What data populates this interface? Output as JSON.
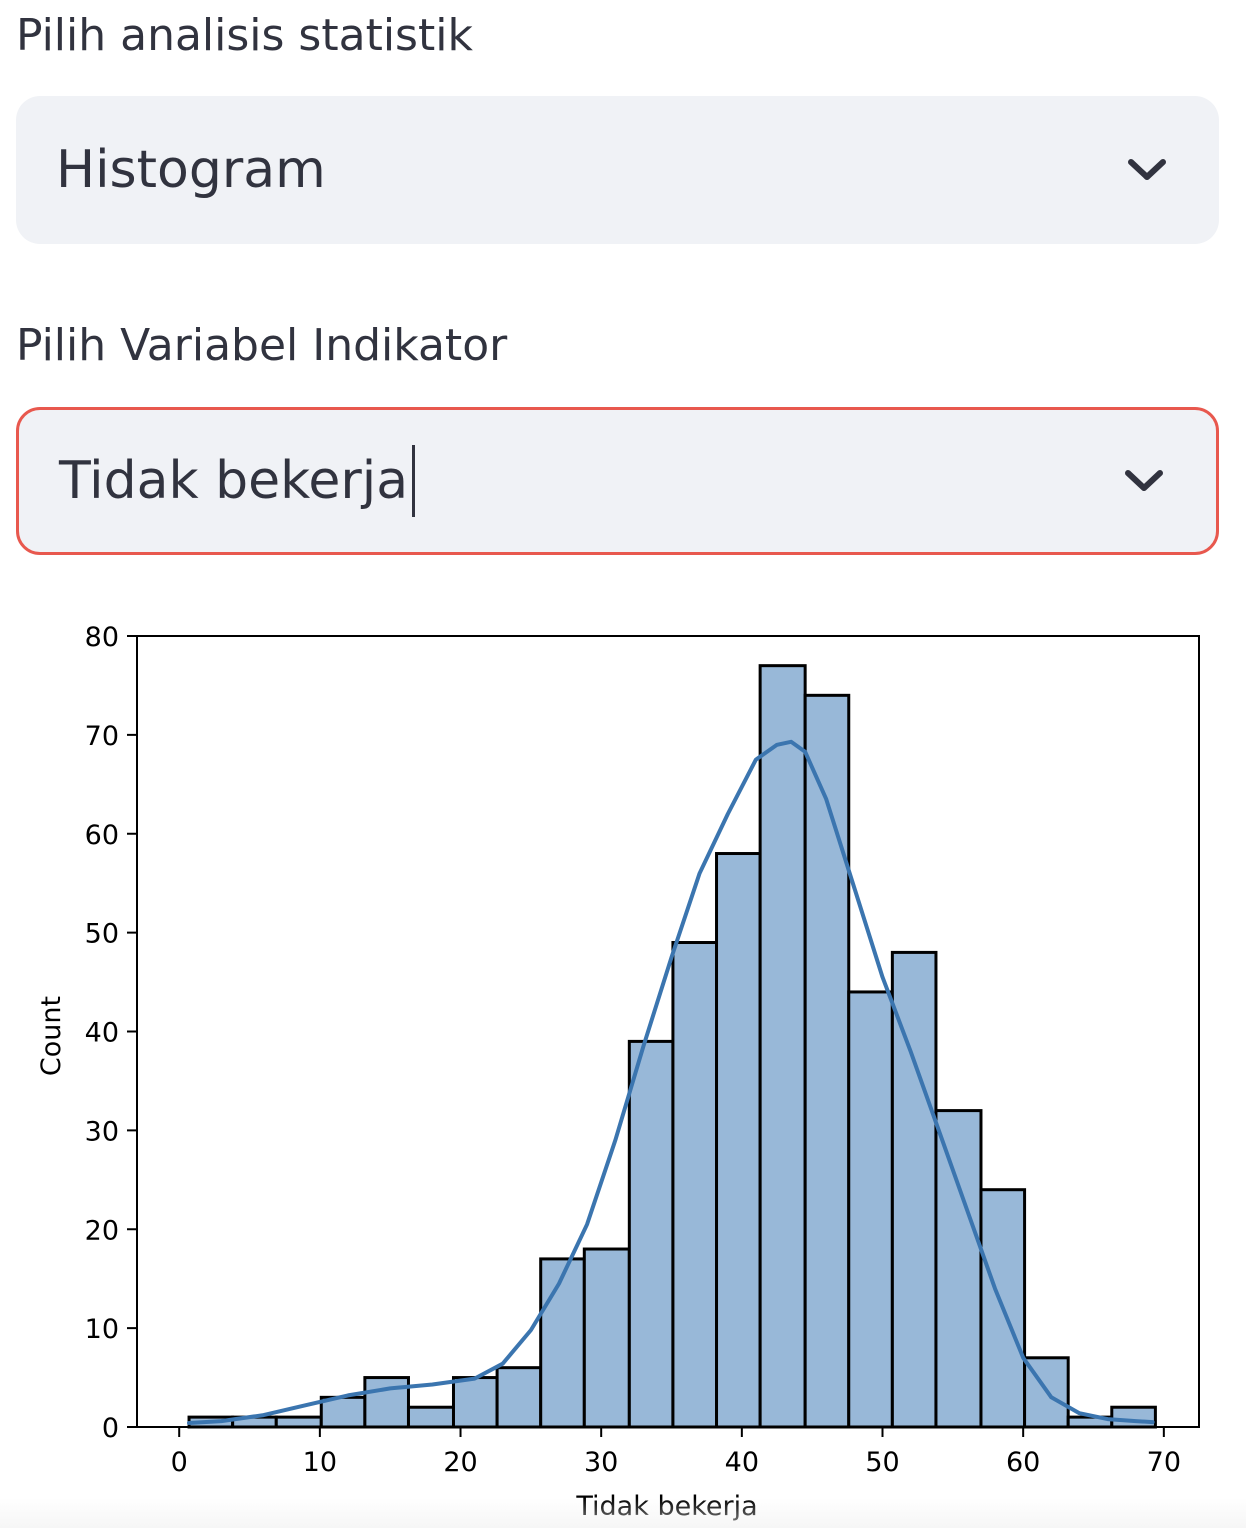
{
  "analysis_select": {
    "label": "Pilih analisis statistik",
    "value": "Histogram",
    "icon": "chevron-down-icon"
  },
  "variable_select": {
    "label": "Pilih Variabel Indikator",
    "value": "Tidak bekerja",
    "icon": "chevron-down-icon",
    "focused": true,
    "focus_border_color": "#e8584e"
  },
  "colors": {
    "select_background": "#f0f2f6",
    "text": "#31333f",
    "bar_fill": "#98b8d8",
    "bar_edge": "#000000",
    "kde_line": "#3b75af"
  },
  "chart_data": {
    "type": "bar",
    "subtype": "histogram-with-kde",
    "xlabel": "Tidak bekerja",
    "ylabel": "Count",
    "xlim": [
      -3,
      72.5
    ],
    "ylim": [
      0,
      80
    ],
    "xticks": [
      0,
      10,
      20,
      30,
      40,
      50,
      60,
      70
    ],
    "yticks": [
      0,
      10,
      20,
      30,
      40,
      50,
      60,
      70,
      80
    ],
    "bin_edges": [
      0.7,
      3.8,
      6.9,
      10.1,
      13.2,
      16.3,
      19.5,
      22.6,
      25.7,
      28.8,
      32.0,
      35.1,
      38.2,
      41.3,
      44.5,
      47.6,
      50.7,
      53.8,
      57.0,
      60.1,
      63.2,
      66.3,
      69.4
    ],
    "values": [
      1,
      1,
      1,
      3,
      5,
      2,
      5,
      6,
      17,
      18,
      39,
      49,
      58,
      77,
      74,
      44,
      48,
      32,
      24,
      7,
      1,
      2
    ],
    "kde": {
      "x": [
        0.7,
        3,
        6,
        9,
        12,
        15,
        18,
        21,
        23,
        25,
        27,
        29,
        31,
        33,
        35,
        37,
        39,
        41,
        42.5,
        43.5,
        44.5,
        46,
        48,
        50,
        52,
        54,
        56,
        58,
        60,
        62,
        64,
        66,
        68,
        69.2
      ],
      "y": [
        0.4,
        0.6,
        1.2,
        2.2,
        3.2,
        3.9,
        4.3,
        4.9,
        6.4,
        9.8,
        14.5,
        20.5,
        29,
        38.5,
        47.5,
        56,
        62,
        67.5,
        69,
        69.3,
        68.3,
        63.5,
        54.5,
        45.5,
        38,
        30,
        22,
        14,
        7,
        3,
        1.4,
        0.8,
        0.6,
        0.5
      ]
    }
  }
}
